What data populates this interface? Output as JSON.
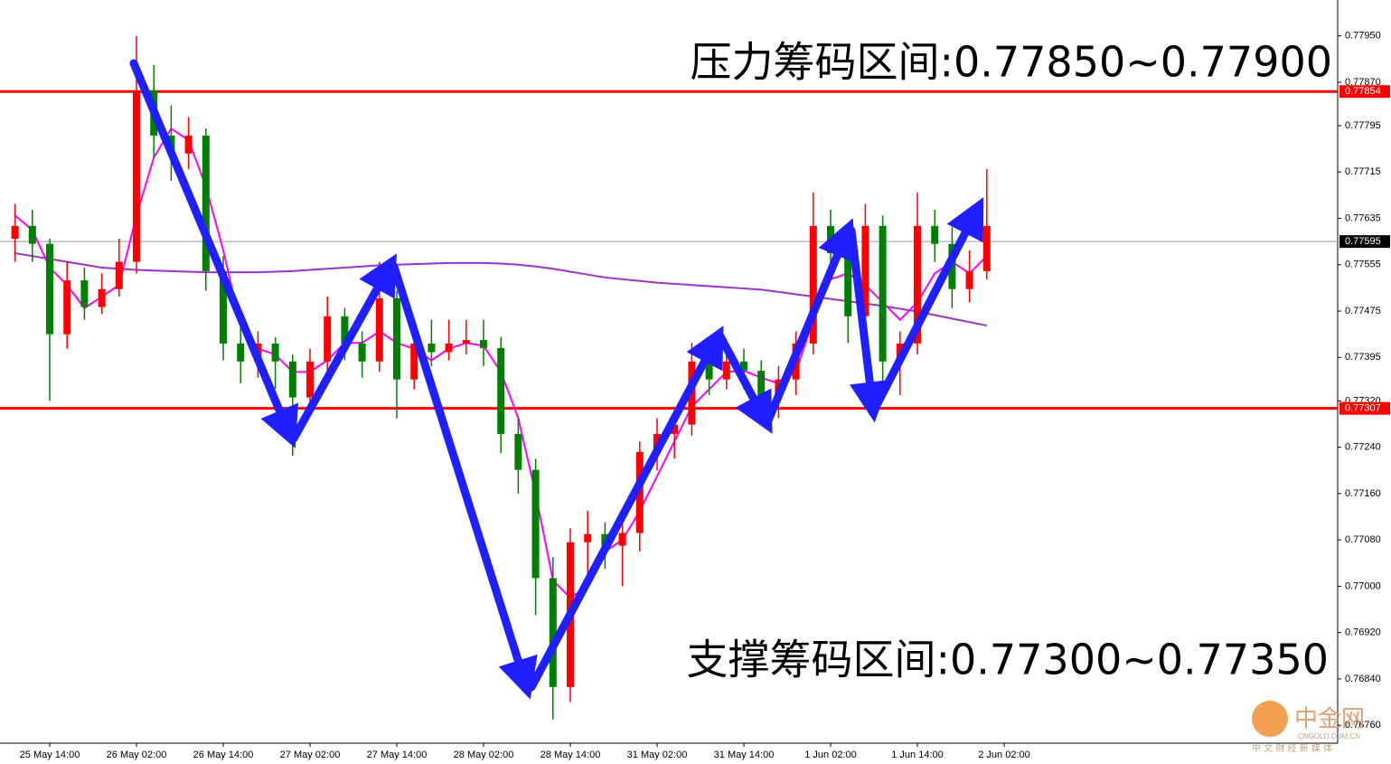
{
  "chart_data": {
    "type": "candlestick",
    "annotations": [
      "压力筹码区间:0.77850~0.77900",
      "支撑筹码区间:0.77300~0.77350"
    ],
    "watermark": {
      "name": "中金网",
      "site": "CNGOLD.COM.CN",
      "slogan": "中 文 财 经 新 媒 体"
    },
    "ylim": [
      0.76729,
      0.78012
    ],
    "yticks": [
      {
        "value": 0.7795,
        "label": "0.77950"
      },
      {
        "value": 0.7787,
        "label": "0.77870"
      },
      {
        "value": 0.77795,
        "label": "0.77795"
      },
      {
        "value": 0.77715,
        "label": "0.77715"
      },
      {
        "value": 0.77635,
        "label": "0.77635"
      },
      {
        "value": 0.77555,
        "label": "0.77555"
      },
      {
        "value": 0.77475,
        "label": "0.77475"
      },
      {
        "value": 0.77395,
        "label": "0.77395"
      },
      {
        "value": 0.7732,
        "label": "0.77320"
      },
      {
        "value": 0.7724,
        "label": "0.77240"
      },
      {
        "value": 0.7716,
        "label": "0.77160"
      },
      {
        "value": 0.7708,
        "label": "0.77080"
      },
      {
        "value": 0.77,
        "label": "0.77000"
      },
      {
        "value": 0.7692,
        "label": "0.76920"
      },
      {
        "value": 0.7684,
        "label": "0.76840"
      },
      {
        "value": 0.7676,
        "label": "0.76760"
      }
    ],
    "xticks": [
      {
        "value": 2,
        "label": "25 May 14:00"
      },
      {
        "value": 7,
        "label": "26 May 02:00"
      },
      {
        "value": 12,
        "label": "26 May 14:00"
      },
      {
        "value": 17,
        "label": "27 May 02:00"
      },
      {
        "value": 22,
        "label": "27 May 14:00"
      },
      {
        "value": 27,
        "label": "28 May 02:00"
      },
      {
        "value": 32,
        "label": "28 May 14:00"
      },
      {
        "value": 37,
        "label": "31 May 02:00"
      },
      {
        "value": 42,
        "label": "31 May 14:00"
      },
      {
        "value": 47,
        "label": "1 Jun 02:00"
      },
      {
        "value": 52,
        "label": "1 Jun 14:00"
      },
      {
        "value": 57,
        "label": "2 Jun 02:00"
      }
    ],
    "levels": [
      {
        "value": 0.77854,
        "label": "0.77854",
        "color": "#ff0000"
      },
      {
        "value": 0.77307,
        "label": "0.77307",
        "color": "#ff0000"
      },
      {
        "value": 0.77595,
        "label": "0.77595",
        "color": "#000000"
      }
    ],
    "up_color": "#ff0000",
    "down_color": "#008000",
    "ohlc": [
      [
        0.776,
        0.7766,
        0.7756,
        0.77622
      ],
      [
        0.77622,
        0.7765,
        0.7756,
        0.77591
      ],
      [
        0.77591,
        0.776,
        0.7732,
        0.77435
      ],
      [
        0.77435,
        0.7756,
        0.7741,
        0.77528
      ],
      [
        0.77528,
        0.7755,
        0.7746,
        0.77482
      ],
      [
        0.77482,
        0.7754,
        0.7747,
        0.77513
      ],
      [
        0.77513,
        0.776,
        0.775,
        0.7756
      ],
      [
        0.7756,
        0.7795,
        0.7754,
        0.77856
      ],
      [
        0.77856,
        0.779,
        0.7774,
        0.77778
      ],
      [
        0.77778,
        0.7783,
        0.777,
        0.77747
      ],
      [
        0.77747,
        0.7781,
        0.7772,
        0.77778
      ],
      [
        0.77778,
        0.7779,
        0.7751,
        0.77544
      ],
      [
        0.77544,
        0.7757,
        0.7739,
        0.77419
      ],
      [
        0.77419,
        0.7745,
        0.7735,
        0.77388
      ],
      [
        0.77388,
        0.7744,
        0.7736,
        0.77419
      ],
      [
        0.77419,
        0.7743,
        0.7734,
        0.77388
      ],
      [
        0.77388,
        0.774,
        0.77225,
        0.77326
      ],
      [
        0.77326,
        0.7741,
        0.773,
        0.77388
      ],
      [
        0.77388,
        0.775,
        0.7737,
        0.77466
      ],
      [
        0.77466,
        0.7748,
        0.7739,
        0.77419
      ],
      [
        0.77419,
        0.7744,
        0.7736,
        0.77388
      ],
      [
        0.77388,
        0.7756,
        0.7737,
        0.77497
      ],
      [
        0.77497,
        0.7751,
        0.7729,
        0.77357
      ],
      [
        0.77357,
        0.7744,
        0.7734,
        0.77419
      ],
      [
        0.77419,
        0.7746,
        0.7738,
        0.77404
      ],
      [
        0.77404,
        0.7746,
        0.7739,
        0.77419
      ],
      [
        0.77419,
        0.7746,
        0.774,
        0.77425
      ],
      [
        0.77425,
        0.7746,
        0.7738,
        0.77411
      ],
      [
        0.77411,
        0.7743,
        0.7723,
        0.77263
      ],
      [
        0.77263,
        0.7729,
        0.7716,
        0.77201
      ],
      [
        0.77201,
        0.7722,
        0.7695,
        0.77014
      ],
      [
        0.77014,
        0.7705,
        0.7677,
        0.76826
      ],
      [
        0.76826,
        0.771,
        0.768,
        0.77076
      ],
      [
        0.77076,
        0.7713,
        0.7702,
        0.7709
      ],
      [
        0.7709,
        0.7711,
        0.7703,
        0.7707
      ],
      [
        0.7707,
        0.7713,
        0.77,
        0.77092
      ],
      [
        0.77092,
        0.7725,
        0.7706,
        0.77232
      ],
      [
        0.77232,
        0.7729,
        0.772,
        0.77263
      ],
      [
        0.77263,
        0.773,
        0.7722,
        0.77279
      ],
      [
        0.77279,
        0.7742,
        0.7726,
        0.77388
      ],
      [
        0.77388,
        0.7742,
        0.7733,
        0.77357
      ],
      [
        0.77357,
        0.7742,
        0.7734,
        0.77388
      ],
      [
        0.77388,
        0.7741,
        0.7734,
        0.77372
      ],
      [
        0.77372,
        0.7739,
        0.773,
        0.77326
      ],
      [
        0.77326,
        0.7738,
        0.7729,
        0.77357
      ],
      [
        0.77357,
        0.7744,
        0.7733,
        0.77419
      ],
      [
        0.77419,
        0.7768,
        0.774,
        0.77622
      ],
      [
        0.77622,
        0.7765,
        0.7755,
        0.77575
      ],
      [
        0.77575,
        0.776,
        0.7742,
        0.77466
      ],
      [
        0.77466,
        0.7766,
        0.7744,
        0.77622
      ],
      [
        0.77622,
        0.7764,
        0.7734,
        0.77388
      ],
      [
        0.77388,
        0.7744,
        0.7733,
        0.77419
      ],
      [
        0.77419,
        0.7768,
        0.774,
        0.77622
      ],
      [
        0.77622,
        0.7765,
        0.7756,
        0.77591
      ],
      [
        0.77591,
        0.7762,
        0.7748,
        0.77513
      ],
      [
        0.77513,
        0.7758,
        0.7749,
        0.77544
      ],
      [
        0.77544,
        0.7772,
        0.7753,
        0.77622
      ]
    ],
    "series": [
      {
        "color": "#9933cc",
        "values": [
          0.77575,
          0.7757,
          0.77565,
          0.7756,
          0.77555,
          0.7755,
          0.77548,
          0.77546,
          0.77545,
          0.77544,
          0.77543,
          0.77542,
          0.77542,
          0.77542,
          0.77542,
          0.77543,
          0.77544,
          0.77546,
          0.77548,
          0.7755,
          0.77552,
          0.77554,
          0.77555,
          0.77556,
          0.77557,
          0.77558,
          0.77558,
          0.77558,
          0.77557,
          0.77555,
          0.77552,
          0.77548,
          0.77543,
          0.77538,
          0.77533,
          0.7753,
          0.77527,
          0.77524,
          0.77522,
          0.7752,
          0.77518,
          0.77516,
          0.77514,
          0.77512,
          0.77508,
          0.77504,
          0.775,
          0.77496,
          0.77492,
          0.77488,
          0.77484,
          0.77479,
          0.77474,
          0.77468,
          0.77462,
          0.77456,
          0.7745
        ]
      },
      {
        "color": "#ff00ff",
        "values": [
          0.7764,
          0.77615,
          0.7755,
          0.7752,
          0.7748,
          0.775,
          0.7752,
          0.7764,
          0.7774,
          0.7779,
          0.7777,
          0.7769,
          0.7758,
          0.7745,
          0.7741,
          0.774,
          0.7737,
          0.7737,
          0.7739,
          0.7742,
          0.7742,
          0.7744,
          0.7742,
          0.7741,
          0.7739,
          0.7741,
          0.7742,
          0.77415,
          0.7737,
          0.7729,
          0.7716,
          0.7701,
          0.7698,
          0.77,
          0.7706,
          0.7708,
          0.7713,
          0.7719,
          0.7725,
          0.7731,
          0.7734,
          0.7737,
          0.77372,
          0.7736,
          0.7735,
          0.7737,
          0.7746,
          0.7753,
          0.7754,
          0.7752,
          0.7749,
          0.7746,
          0.7749,
          0.7754,
          0.7756,
          0.7754,
          0.7757
        ]
      }
    ]
  }
}
